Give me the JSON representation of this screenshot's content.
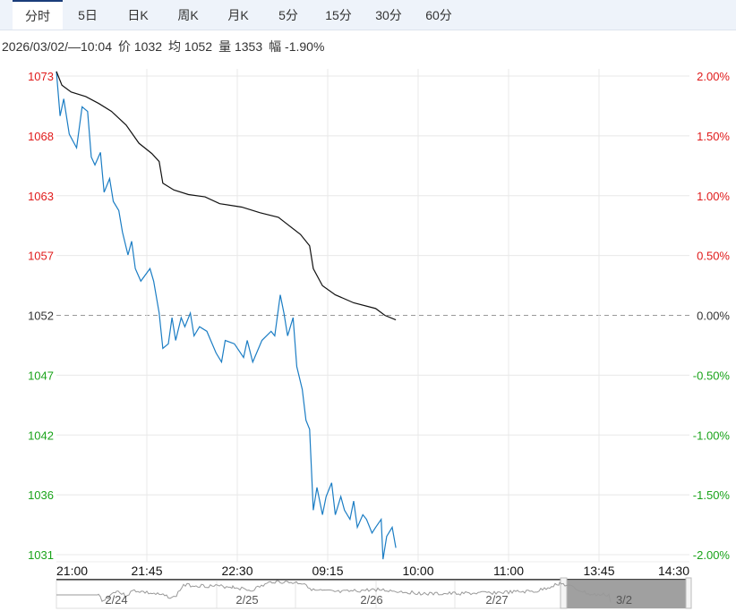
{
  "tabs": [
    "分时",
    "5日",
    "日K",
    "周K",
    "月K",
    "5分",
    "15分",
    "30分",
    "60分"
  ],
  "info": {
    "datetime": "2026/03/02/—10:04",
    "price": "价 1032",
    "avg": "均 1052",
    "volume": "量 1353",
    "change": "幅 -1.90%"
  },
  "colors": {
    "up": "#e01b1b",
    "down": "#1aa31a",
    "price_line": "#1b7dc4",
    "avg_line": "#111111"
  },
  "chart_data": {
    "type": "line",
    "title": "",
    "ylim": [
      1031,
      1073
    ],
    "base": 1052,
    "x_max_minutes": 345,
    "left_ticks": [
      "1073",
      "1068",
      "1063",
      "1057",
      "1052",
      "1047",
      "1042",
      "1036",
      "1031"
    ],
    "right_ticks": [
      "2.00%",
      "1.50%",
      "1.00%",
      "0.50%",
      "0.00%",
      "-0.50%",
      "-1.00%",
      "-1.50%",
      "-2.00%"
    ],
    "x_ticks": [
      "21:00",
      "21:45",
      "22:30",
      "09:15",
      "10:00",
      "11:00",
      "13:45",
      "14:30"
    ],
    "series": [
      {
        "name": "价",
        "x": [
          0,
          2,
          4,
          7,
          11,
          14,
          17,
          19,
          21,
          24,
          26,
          29,
          31,
          34,
          36,
          39,
          41,
          43,
          46,
          51,
          53,
          56,
          58,
          61,
          63,
          65,
          68,
          70,
          73,
          75,
          78,
          82,
          87,
          90,
          92,
          97,
          102,
          104,
          107,
          112,
          117,
          119,
          122,
          124,
          126,
          129,
          131,
          134,
          136,
          138,
          140,
          142,
          145,
          147,
          150,
          152,
          155,
          157,
          160,
          162,
          164,
          167,
          169,
          172,
          174,
          177,
          178,
          180,
          183,
          185
        ],
        "y": [
          1073.4,
          1069.5,
          1071.0,
          1067.9,
          1066.7,
          1070.3,
          1069.9,
          1065.9,
          1065.2,
          1066.3,
          1062.8,
          1064.0,
          1062.0,
          1061.2,
          1059.3,
          1057.3,
          1058.5,
          1056.1,
          1055.0,
          1056.1,
          1055.0,
          1052.2,
          1049.1,
          1049.5,
          1051.8,
          1049.8,
          1051.8,
          1051.0,
          1052.2,
          1050.2,
          1051.0,
          1050.6,
          1048.7,
          1047.9,
          1049.8,
          1049.5,
          1048.3,
          1049.8,
          1047.9,
          1049.8,
          1050.6,
          1050.2,
          1053.8,
          1052.2,
          1050.2,
          1051.8,
          1047.5,
          1045.5,
          1042.8,
          1042.0,
          1034.9,
          1036.9,
          1034.5,
          1036.1,
          1037.3,
          1034.5,
          1036.1,
          1034.9,
          1034.1,
          1035.7,
          1033.4,
          1034.5,
          1034.1,
          1032.9,
          1033.4,
          1034.1,
          1030.6,
          1032.6,
          1033.4,
          1031.6
        ]
      },
      {
        "name": "均",
        "x": [
          0,
          3,
          8,
          16,
          23,
          30,
          38,
          45,
          52,
          56,
          58,
          64,
          72,
          81,
          89,
          101,
          111,
          121,
          125,
          133,
          138,
          140,
          145,
          152,
          162,
          174,
          179,
          185
        ],
        "y": [
          1073.4,
          1072.2,
          1071.6,
          1071.2,
          1070.6,
          1069.9,
          1068.7,
          1067.1,
          1066.2,
          1065.5,
          1063.6,
          1063.0,
          1062.6,
          1062.4,
          1061.8,
          1061.5,
          1061.0,
          1060.6,
          1060.1,
          1059.1,
          1058.1,
          1056.1,
          1054.6,
          1053.8,
          1053.1,
          1052.6,
          1052.0,
          1051.6
        ]
      }
    ]
  },
  "navigator": {
    "days": [
      "2/24",
      "2/25",
      "2/26",
      "2/27",
      "3/2"
    ]
  }
}
